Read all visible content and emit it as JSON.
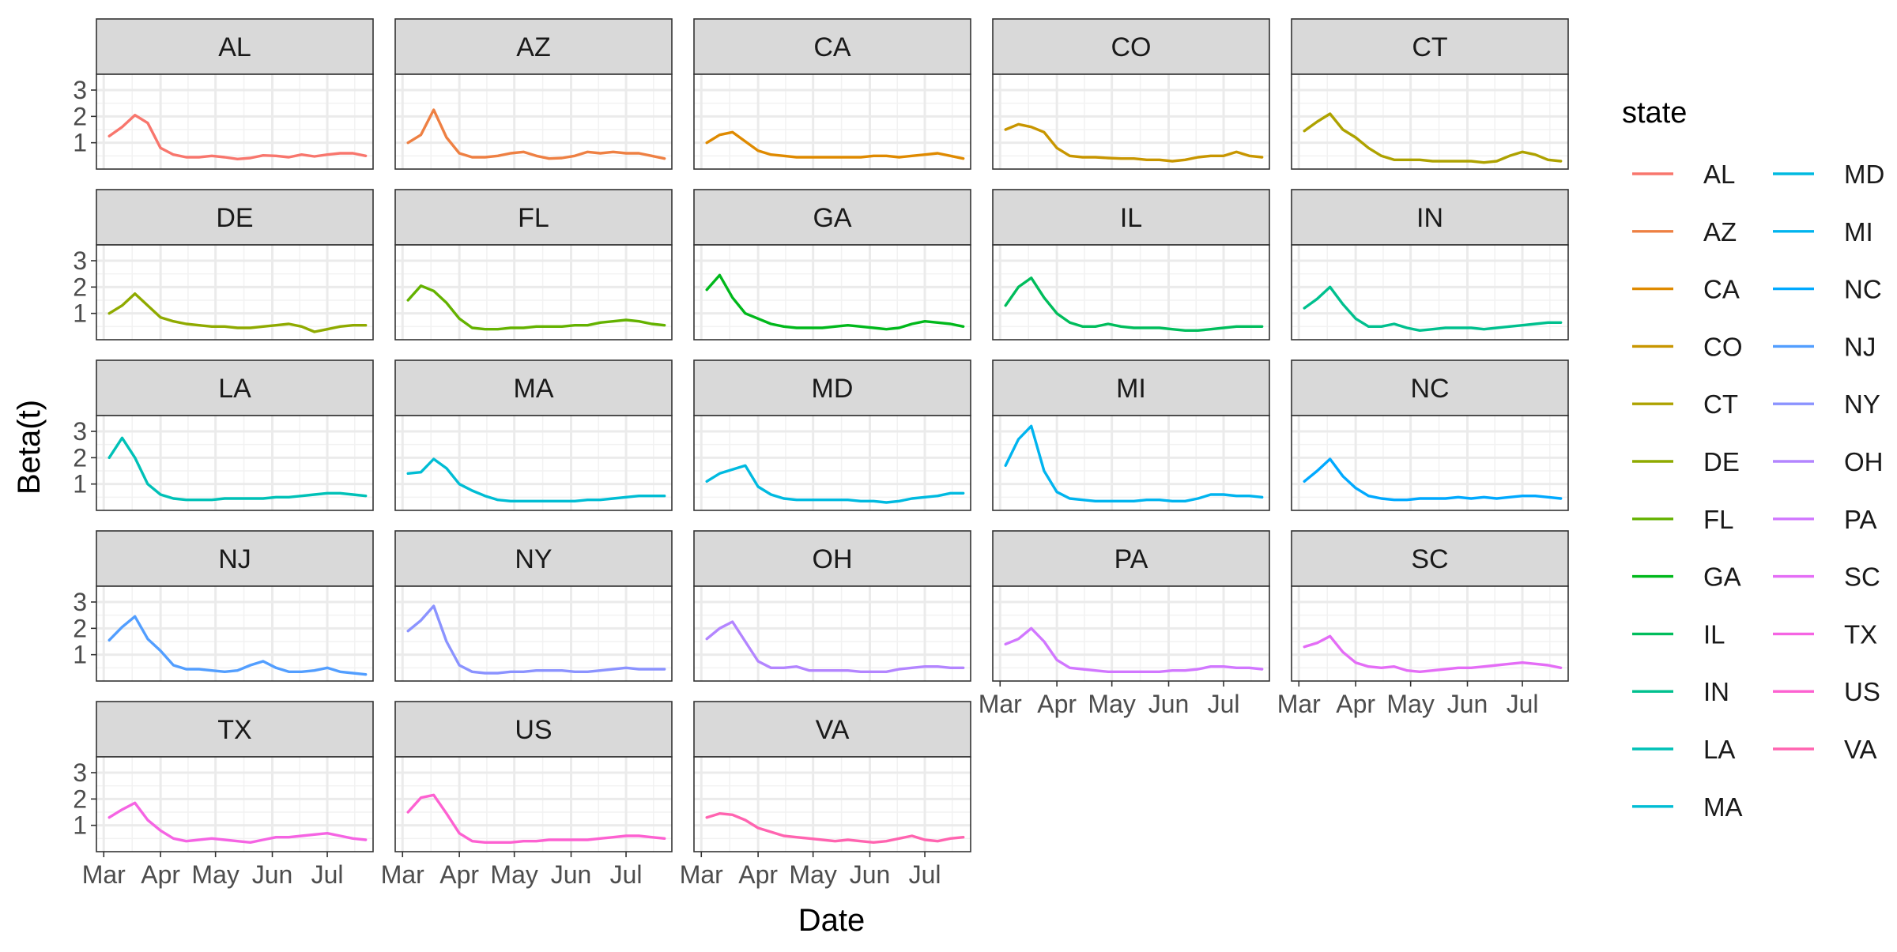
{
  "chart_data": {
    "type": "line",
    "layout": "facet-grid",
    "xlabel": "Date",
    "ylabel": "Beta(t)",
    "x_ticks": [
      "Mar",
      "Apr",
      "May",
      "Jun",
      "Jul"
    ],
    "x_tick_dates": [
      "2020-03-01",
      "2020-04-01",
      "2020-05-01",
      "2020-06-01",
      "2020-07-01"
    ],
    "x_range": [
      "2020-02-26",
      "2020-07-26"
    ],
    "y_ticks": [
      1,
      2,
      3
    ],
    "ylim": [
      0.0,
      3.6
    ],
    "grid": true,
    "legend": {
      "title": "state",
      "placement": "right",
      "columns": 2
    },
    "x": [
      "2020-03-04",
      "2020-03-11",
      "2020-03-18",
      "2020-03-25",
      "2020-04-01",
      "2020-04-08",
      "2020-04-15",
      "2020-04-22",
      "2020-04-29",
      "2020-05-06",
      "2020-05-13",
      "2020-05-20",
      "2020-05-27",
      "2020-06-03",
      "2020-06-10",
      "2020-06-17",
      "2020-06-24",
      "2020-07-01",
      "2020-07-08",
      "2020-07-15",
      "2020-07-22"
    ],
    "series": [
      {
        "name": "AL",
        "color": "#F8766D",
        "values": [
          1.25,
          1.6,
          2.05,
          1.75,
          0.8,
          0.55,
          0.45,
          0.45,
          0.5,
          0.45,
          0.38,
          0.42,
          0.52,
          0.5,
          0.45,
          0.55,
          0.48,
          0.55,
          0.6,
          0.6,
          0.5
        ]
      },
      {
        "name": "AZ",
        "color": "#EE8043",
        "values": [
          1.0,
          1.3,
          2.25,
          1.2,
          0.6,
          0.45,
          0.45,
          0.5,
          0.6,
          0.65,
          0.5,
          0.4,
          0.42,
          0.5,
          0.65,
          0.6,
          0.65,
          0.6,
          0.6,
          0.5,
          0.4
        ]
      },
      {
        "name": "CA",
        "color": "#DF8A00",
        "values": [
          1.0,
          1.3,
          1.4,
          1.05,
          0.7,
          0.55,
          0.5,
          0.45,
          0.45,
          0.45,
          0.45,
          0.45,
          0.45,
          0.5,
          0.5,
          0.45,
          0.5,
          0.55,
          0.6,
          0.5,
          0.4
        ]
      },
      {
        "name": "CO",
        "color": "#C89600",
        "values": [
          1.5,
          1.7,
          1.6,
          1.4,
          0.8,
          0.5,
          0.45,
          0.45,
          0.42,
          0.4,
          0.4,
          0.35,
          0.35,
          0.3,
          0.35,
          0.45,
          0.5,
          0.5,
          0.65,
          0.5,
          0.45
        ]
      },
      {
        "name": "CT",
        "color": "#AEA200",
        "values": [
          1.45,
          1.8,
          2.1,
          1.5,
          1.2,
          0.8,
          0.5,
          0.35,
          0.35,
          0.35,
          0.3,
          0.3,
          0.3,
          0.3,
          0.25,
          0.3,
          0.5,
          0.65,
          0.55,
          0.35,
          0.3
        ]
      },
      {
        "name": "DE",
        "color": "#8FAA00",
        "values": [
          1.0,
          1.3,
          1.75,
          1.3,
          0.85,
          0.7,
          0.6,
          0.55,
          0.5,
          0.5,
          0.45,
          0.45,
          0.5,
          0.55,
          0.6,
          0.5,
          0.3,
          0.4,
          0.5,
          0.55,
          0.55
        ]
      },
      {
        "name": "FL",
        "color": "#64B200",
        "values": [
          1.5,
          2.05,
          1.85,
          1.4,
          0.8,
          0.45,
          0.4,
          0.4,
          0.45,
          0.45,
          0.5,
          0.5,
          0.5,
          0.55,
          0.55,
          0.65,
          0.7,
          0.75,
          0.7,
          0.6,
          0.55
        ]
      },
      {
        "name": "GA",
        "color": "#00B81B",
        "values": [
          1.9,
          2.45,
          1.6,
          1.0,
          0.8,
          0.6,
          0.5,
          0.45,
          0.45,
          0.45,
          0.5,
          0.55,
          0.5,
          0.45,
          0.4,
          0.45,
          0.6,
          0.7,
          0.65,
          0.6,
          0.5
        ]
      },
      {
        "name": "IL",
        "color": "#00BD5C",
        "values": [
          1.3,
          2.0,
          2.35,
          1.6,
          1.0,
          0.65,
          0.5,
          0.5,
          0.6,
          0.5,
          0.45,
          0.45,
          0.45,
          0.4,
          0.35,
          0.35,
          0.4,
          0.45,
          0.5,
          0.5,
          0.5
        ]
      },
      {
        "name": "IN",
        "color": "#00C08E",
        "values": [
          1.2,
          1.55,
          2.0,
          1.35,
          0.8,
          0.5,
          0.5,
          0.6,
          0.45,
          0.35,
          0.4,
          0.45,
          0.45,
          0.45,
          0.4,
          0.45,
          0.5,
          0.55,
          0.6,
          0.65,
          0.65
        ]
      },
      {
        "name": "LA",
        "color": "#00C1B7",
        "values": [
          2.0,
          2.75,
          2.0,
          1.0,
          0.6,
          0.45,
          0.4,
          0.4,
          0.4,
          0.45,
          0.45,
          0.45,
          0.45,
          0.5,
          0.5,
          0.55,
          0.6,
          0.65,
          0.65,
          0.6,
          0.55
        ]
      },
      {
        "name": "MA",
        "color": "#00BDD4",
        "values": [
          1.4,
          1.45,
          1.95,
          1.6,
          1.0,
          0.75,
          0.55,
          0.4,
          0.35,
          0.35,
          0.35,
          0.35,
          0.35,
          0.35,
          0.4,
          0.4,
          0.45,
          0.5,
          0.55,
          0.55,
          0.55
        ]
      },
      {
        "name": "MD",
        "color": "#00BAE0",
        "values": [
          1.1,
          1.4,
          1.55,
          1.7,
          0.9,
          0.6,
          0.45,
          0.4,
          0.4,
          0.4,
          0.4,
          0.4,
          0.35,
          0.35,
          0.3,
          0.35,
          0.45,
          0.5,
          0.55,
          0.65,
          0.65
        ]
      },
      {
        "name": "MI",
        "color": "#00B4EF",
        "values": [
          1.7,
          2.7,
          3.2,
          1.5,
          0.7,
          0.45,
          0.4,
          0.35,
          0.35,
          0.35,
          0.35,
          0.4,
          0.4,
          0.35,
          0.35,
          0.45,
          0.6,
          0.6,
          0.55,
          0.55,
          0.5
        ]
      },
      {
        "name": "NC",
        "color": "#00A9FF",
        "values": [
          1.1,
          1.5,
          1.95,
          1.3,
          0.85,
          0.55,
          0.45,
          0.4,
          0.4,
          0.45,
          0.45,
          0.45,
          0.5,
          0.45,
          0.5,
          0.45,
          0.5,
          0.55,
          0.55,
          0.5,
          0.45
        ]
      },
      {
        "name": "NJ",
        "color": "#529EFF",
        "values": [
          1.55,
          2.05,
          2.45,
          1.6,
          1.15,
          0.6,
          0.45,
          0.45,
          0.4,
          0.35,
          0.4,
          0.6,
          0.75,
          0.5,
          0.35,
          0.35,
          0.4,
          0.5,
          0.35,
          0.3,
          0.25
        ]
      },
      {
        "name": "NY",
        "color": "#8B93FF",
        "values": [
          1.9,
          2.3,
          2.85,
          1.5,
          0.6,
          0.35,
          0.3,
          0.3,
          0.35,
          0.35,
          0.4,
          0.4,
          0.4,
          0.35,
          0.35,
          0.4,
          0.45,
          0.5,
          0.45,
          0.45,
          0.45
        ]
      },
      {
        "name": "OH",
        "color": "#B385FF",
        "values": [
          1.6,
          2.0,
          2.25,
          1.5,
          0.75,
          0.5,
          0.5,
          0.55,
          0.4,
          0.4,
          0.4,
          0.4,
          0.35,
          0.35,
          0.35,
          0.45,
          0.5,
          0.55,
          0.55,
          0.5,
          0.5
        ]
      },
      {
        "name": "PA",
        "color": "#D177FF",
        "values": [
          1.4,
          1.6,
          2.0,
          1.5,
          0.8,
          0.5,
          0.45,
          0.4,
          0.35,
          0.35,
          0.35,
          0.35,
          0.35,
          0.4,
          0.4,
          0.45,
          0.55,
          0.55,
          0.5,
          0.5,
          0.45
        ]
      },
      {
        "name": "SC",
        "color": "#E46DF6",
        "values": [
          1.3,
          1.45,
          1.7,
          1.1,
          0.7,
          0.55,
          0.5,
          0.55,
          0.4,
          0.35,
          0.4,
          0.45,
          0.5,
          0.5,
          0.55,
          0.6,
          0.65,
          0.7,
          0.65,
          0.6,
          0.5
        ]
      },
      {
        "name": "TX",
        "color": "#F564E3",
        "values": [
          1.3,
          1.6,
          1.85,
          1.2,
          0.8,
          0.5,
          0.4,
          0.45,
          0.5,
          0.45,
          0.4,
          0.35,
          0.45,
          0.55,
          0.55,
          0.6,
          0.65,
          0.7,
          0.6,
          0.5,
          0.45
        ]
      },
      {
        "name": "US",
        "color": "#FD61D1",
        "values": [
          1.5,
          2.05,
          2.15,
          1.45,
          0.7,
          0.4,
          0.35,
          0.35,
          0.35,
          0.4,
          0.4,
          0.45,
          0.45,
          0.45,
          0.45,
          0.5,
          0.55,
          0.6,
          0.6,
          0.55,
          0.5
        ]
      },
      {
        "name": "VA",
        "color": "#FF64B0",
        "values": [
          1.3,
          1.45,
          1.4,
          1.2,
          0.9,
          0.75,
          0.6,
          0.55,
          0.5,
          0.45,
          0.4,
          0.45,
          0.4,
          0.35,
          0.4,
          0.5,
          0.6,
          0.45,
          0.4,
          0.5,
          0.55
        ]
      }
    ]
  }
}
